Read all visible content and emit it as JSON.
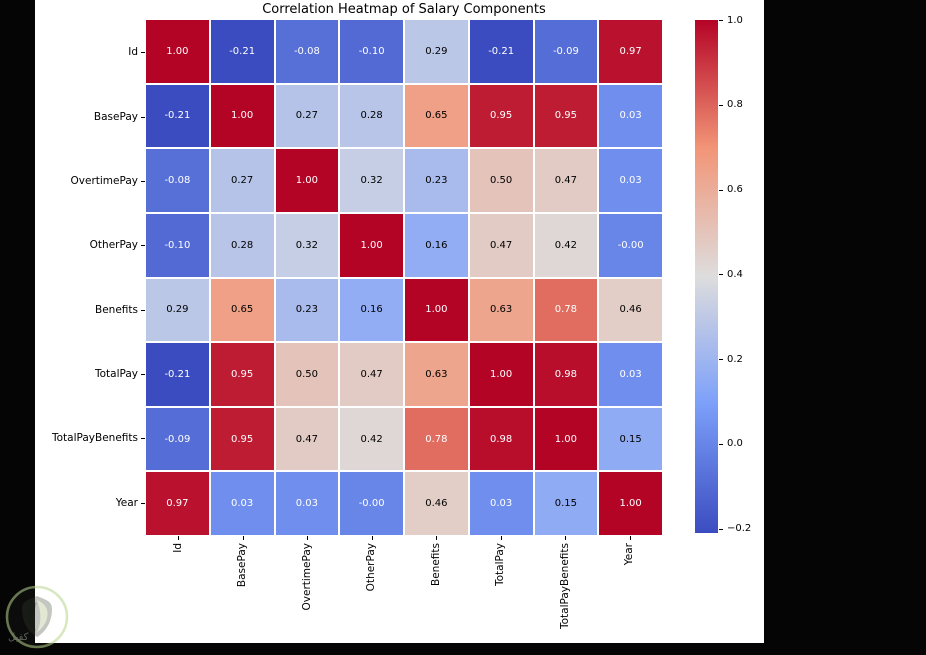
{
  "title": "Correlation Heatmap of Salary Components",
  "watermark": {
    "text": "كفيل"
  },
  "colors": {
    "page_bg": "#050505",
    "figure_bg": "#ffffff",
    "grid_line": "#ffffff",
    "annotation_light": "#ffffff",
    "annotation_dark": "#000000",
    "colormap_min": "#3b4cc0",
    "colormap_mid": "#dddddd",
    "colormap_max": "#b40426"
  },
  "chart_data": {
    "type": "heatmap",
    "title": "Correlation Heatmap of Salary Components",
    "colormap": "coolwarm",
    "vmin": -0.21,
    "vmax": 1.0,
    "grid": false,
    "legend_position": "right-colorbar",
    "labels": [
      "Id",
      "BasePay",
      "OvertimePay",
      "OtherPay",
      "Benefits",
      "TotalPay",
      "TotalPayBenefits",
      "Year"
    ],
    "matrix": [
      [
        1.0,
        -0.21,
        -0.08,
        -0.1,
        0.29,
        -0.21,
        -0.09,
        0.97
      ],
      [
        -0.21,
        1.0,
        0.27,
        0.28,
        0.65,
        0.95,
        0.95,
        0.03
      ],
      [
        -0.08,
        0.27,
        1.0,
        0.32,
        0.23,
        0.5,
        0.47,
        0.03
      ],
      [
        -0.1,
        0.28,
        0.32,
        1.0,
        0.16,
        0.47,
        0.42,
        -0.0
      ],
      [
        0.29,
        0.65,
        0.23,
        0.16,
        1.0,
        0.63,
        0.78,
        0.46
      ],
      [
        -0.21,
        0.95,
        0.5,
        0.47,
        0.63,
        1.0,
        0.98,
        0.03
      ],
      [
        -0.09,
        0.95,
        0.47,
        0.42,
        0.78,
        0.98,
        1.0,
        0.15
      ],
      [
        0.97,
        0.03,
        0.03,
        -0.0,
        0.46,
        0.03,
        0.15,
        1.0
      ]
    ],
    "annotations": [
      [
        "1.00",
        "-0.21",
        "-0.08",
        "-0.10",
        "0.29",
        "-0.21",
        "-0.09",
        "0.97"
      ],
      [
        "-0.21",
        "1.00",
        "0.27",
        "0.28",
        "0.65",
        "0.95",
        "0.95",
        "0.03"
      ],
      [
        "-0.08",
        "0.27",
        "1.00",
        "0.32",
        "0.23",
        "0.50",
        "0.47",
        "0.03"
      ],
      [
        "-0.10",
        "0.28",
        "0.32",
        "1.00",
        "0.16",
        "0.47",
        "0.42",
        "-0.00"
      ],
      [
        "0.29",
        "0.65",
        "0.23",
        "0.16",
        "1.00",
        "0.63",
        "0.78",
        "0.46"
      ],
      [
        "-0.21",
        "0.95",
        "0.50",
        "0.47",
        "0.63",
        "1.00",
        "0.98",
        "0.03"
      ],
      [
        "-0.09",
        "0.95",
        "0.47",
        "0.42",
        "0.78",
        "0.98",
        "1.00",
        "0.15"
      ],
      [
        "0.97",
        "0.03",
        "0.03",
        "-0.00",
        "0.46",
        "0.03",
        "0.15",
        "1.00"
      ]
    ],
    "colorbar_ticks": [
      "1.0",
      "0.8",
      "0.6",
      "0.4",
      "0.2",
      "0.0",
      "−0.2"
    ],
    "colorbar_tick_values": [
      1.0,
      0.8,
      0.6,
      0.4,
      0.2,
      0.0,
      -0.2
    ]
  }
}
